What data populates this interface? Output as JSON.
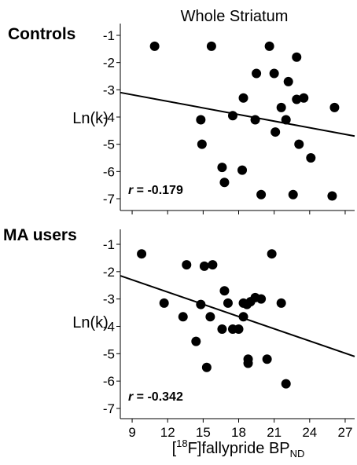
{
  "figure": {
    "title": "Whole Striatum",
    "xlabel_prefix": "[",
    "xlabel_sup": "18",
    "xlabel_mid": "F]fallypride BP",
    "xlabel_sub": "ND"
  },
  "chart_data": [
    {
      "type": "scatter",
      "panel_label": "Controls",
      "title": "Whole Striatum",
      "ylabel": "Ln(k)",
      "xlabel": "",
      "xlim": [
        8,
        27.8
      ],
      "ylim": [
        -7.3,
        -0.7
      ],
      "xticks": [],
      "yticks": [
        -1,
        -2,
        -3,
        -4,
        -5,
        -6,
        -7
      ],
      "ytick_labels": [
        "-1",
        "-2",
        "-3",
        "-4",
        "-5",
        "-6",
        "-7"
      ],
      "r_label": "r",
      "r_value": "= -0.179",
      "points": [
        {
          "x": 10.9,
          "y": -1.4
        },
        {
          "x": 15.7,
          "y": -1.4
        },
        {
          "x": 20.6,
          "y": -1.4
        },
        {
          "x": 22.9,
          "y": -1.8
        },
        {
          "x": 19.5,
          "y": -2.4
        },
        {
          "x": 21.0,
          "y": -2.4
        },
        {
          "x": 22.2,
          "y": -2.7
        },
        {
          "x": 18.4,
          "y": -3.3
        },
        {
          "x": 22.9,
          "y": -3.35
        },
        {
          "x": 23.5,
          "y": -3.3
        },
        {
          "x": 21.6,
          "y": -3.65
        },
        {
          "x": 26.1,
          "y": -3.65
        },
        {
          "x": 17.5,
          "y": -3.95
        },
        {
          "x": 19.4,
          "y": -4.1
        },
        {
          "x": 22.0,
          "y": -4.1
        },
        {
          "x": 14.8,
          "y": -4.1
        },
        {
          "x": 21.1,
          "y": -4.55
        },
        {
          "x": 14.9,
          "y": -5.0
        },
        {
          "x": 23.1,
          "y": -5.0
        },
        {
          "x": 24.1,
          "y": -5.5
        },
        {
          "x": 16.6,
          "y": -5.85
        },
        {
          "x": 18.3,
          "y": -5.95
        },
        {
          "x": 16.8,
          "y": -6.4
        },
        {
          "x": 19.9,
          "y": -6.85
        },
        {
          "x": 22.6,
          "y": -6.85
        },
        {
          "x": 25.9,
          "y": -6.9
        }
      ],
      "trendline": {
        "x": [
          8,
          27.8
        ],
        "y": [
          -3.1,
          -4.7
        ]
      }
    },
    {
      "type": "scatter",
      "panel_label": "MA users",
      "ylabel": "Ln(k)",
      "xlabel": "[18F]fallypride BP_ND",
      "xlim": [
        8,
        27.8
      ],
      "ylim": [
        -7.3,
        -0.7
      ],
      "xticks": [
        9,
        12,
        15,
        18,
        21,
        24,
        27
      ],
      "xtick_labels": [
        "9",
        "12",
        "15",
        "18",
        "21",
        "24",
        "27"
      ],
      "yticks": [
        -1,
        -2,
        -3,
        -4,
        -5,
        -6,
        -7
      ],
      "ytick_labels": [
        "-1",
        "-2",
        "-3",
        "-4",
        "-5",
        "-6",
        "-7"
      ],
      "r_label": "r",
      "r_value": "= -0.342",
      "points": [
        {
          "x": 9.8,
          "y": -1.35
        },
        {
          "x": 20.8,
          "y": -1.35
        },
        {
          "x": 13.6,
          "y": -1.75
        },
        {
          "x": 15.1,
          "y": -1.8
        },
        {
          "x": 15.8,
          "y": -1.75
        },
        {
          "x": 16.8,
          "y": -2.7
        },
        {
          "x": 11.7,
          "y": -3.15
        },
        {
          "x": 14.8,
          "y": -3.2
        },
        {
          "x": 17.1,
          "y": -3.15
        },
        {
          "x": 18.4,
          "y": -3.15
        },
        {
          "x": 18.7,
          "y": -3.2
        },
        {
          "x": 19.0,
          "y": -3.1
        },
        {
          "x": 19.4,
          "y": -2.95
        },
        {
          "x": 19.9,
          "y": -3.0
        },
        {
          "x": 21.6,
          "y": -3.15
        },
        {
          "x": 13.3,
          "y": -3.65
        },
        {
          "x": 15.6,
          "y": -3.65
        },
        {
          "x": 18.4,
          "y": -3.65
        },
        {
          "x": 16.6,
          "y": -4.1
        },
        {
          "x": 17.5,
          "y": -4.1
        },
        {
          "x": 18.0,
          "y": -4.1
        },
        {
          "x": 14.4,
          "y": -4.55
        },
        {
          "x": 18.8,
          "y": -5.2
        },
        {
          "x": 18.8,
          "y": -5.35
        },
        {
          "x": 20.4,
          "y": -5.2
        },
        {
          "x": 15.3,
          "y": -5.5
        },
        {
          "x": 22.0,
          "y": -6.1
        }
      ],
      "trendline": {
        "x": [
          8,
          27.8
        ],
        "y": [
          -2.15,
          -5.1
        ]
      }
    }
  ]
}
